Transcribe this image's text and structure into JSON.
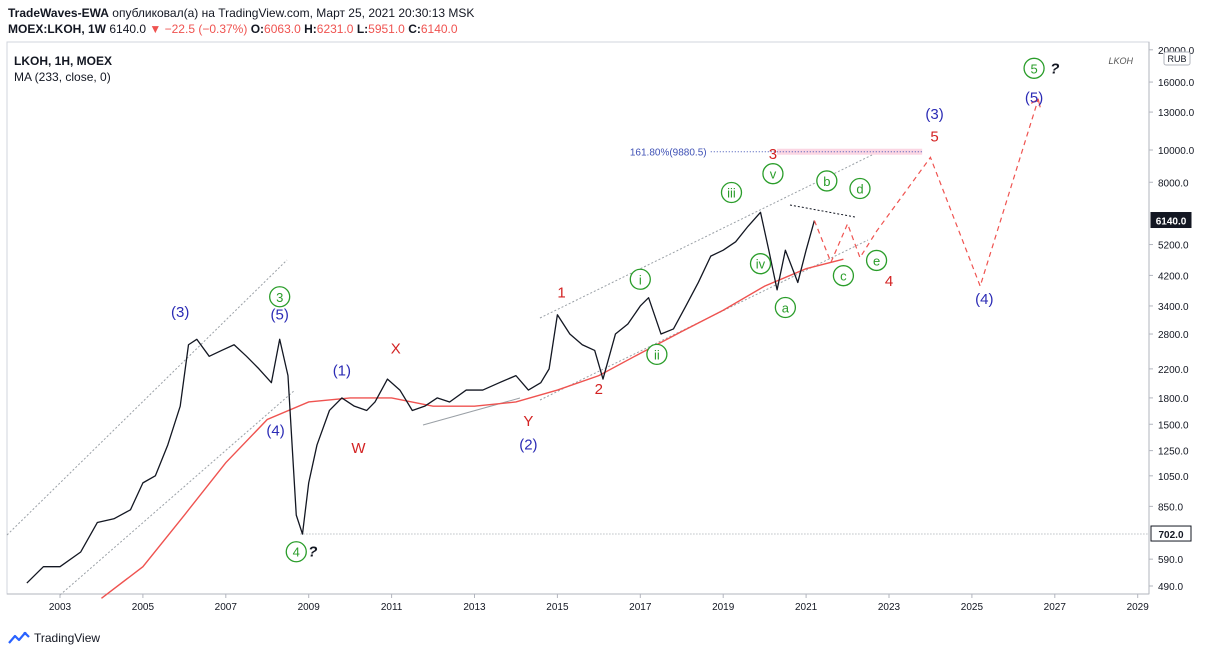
{
  "header": {
    "author": "TradeWaves-EWA",
    "published_text": "опубликовал(а) на TradingView.com, Март 25, 2021 20:30:13 MSK",
    "symbol_line": "MOEX:LKOH, 1W",
    "last": "6140.0",
    "change": "−22.5 (−0.37%)",
    "open_label": "O:",
    "open": "6063.0",
    "high_label": "H:",
    "high": "6231.0",
    "low_label": "L:",
    "low": "5951.0",
    "close_label": "C:",
    "close": "6140.0"
  },
  "footer": {
    "brand": "TradingView"
  },
  "colors": {
    "price": "#131722",
    "ma": "#ef5350",
    "blue_label": "#2b2bb5",
    "green_label": "#2a9d2a",
    "red_label": "#d32222",
    "price_tag": "#131722"
  },
  "chart_data": {
    "type": "line",
    "legend": {
      "title": "LKOH, 1H, MOEX",
      "indicator": "MA (233, close, 0)",
      "watermark": "LKOH"
    },
    "yaxis": {
      "scale": "log",
      "currency": "RUB",
      "ticks": [
        490.0,
        590.0,
        702.0,
        850.0,
        1050.0,
        1250.0,
        1500.0,
        1800.0,
        2200.0,
        2800.0,
        3400.0,
        4200.0,
        5200.0,
        6500.0,
        8000.0,
        10000.0,
        13000.0,
        16000.0,
        20000.0
      ],
      "tick_labels": [
        "490.0",
        "590.0",
        "",
        "850.0",
        "1050.0",
        "1250.0",
        "1500.0",
        "1800.0",
        "2200.0",
        "2800.0",
        "3400.0",
        "4200.0",
        "5200.0",
        "",
        "8000.0",
        "10000.0",
        "13000.0",
        "16000.0",
        "20000.0"
      ],
      "last_price_tag": "6140.0",
      "level_tag": "702.0"
    },
    "xaxis": {
      "tick_labels": [
        "2003",
        "2005",
        "2007",
        "2009",
        "2011",
        "2013",
        "2015",
        "2017",
        "2019",
        "2021",
        "2023",
        "2025",
        "2027",
        "2029"
      ],
      "tick_years": [
        2003,
        2005,
        2007,
        2009,
        2011,
        2013,
        2015,
        2017,
        2019,
        2021,
        2023,
        2025,
        2027,
        2029
      ]
    },
    "series": [
      {
        "kind": "price",
        "x": [
          2002.2,
          2002.6,
          2003.0,
          2003.5,
          2003.9,
          2004.3,
          2004.7,
          2005.0,
          2005.3,
          2005.6,
          2005.9,
          2006.1,
          2006.3,
          2006.6,
          2006.9,
          2007.2,
          2007.5,
          2007.8,
          2008.1,
          2008.3,
          2008.5,
          2008.7,
          2008.85,
          2009.0,
          2009.2,
          2009.5,
          2009.8,
          2010.1,
          2010.4,
          2010.6,
          2010.9,
          2011.2,
          2011.5,
          2011.8,
          2012.1,
          2012.4,
          2012.8,
          2013.2,
          2013.6,
          2014.0,
          2014.3,
          2014.6,
          2014.8,
          2015.0,
          2015.3,
          2015.6,
          2015.9,
          2016.1,
          2016.4,
          2016.7,
          2017.0,
          2017.2,
          2017.5,
          2017.8,
          2018.1,
          2018.4,
          2018.7,
          2019.0,
          2019.3,
          2019.6,
          2019.9,
          2020.1,
          2020.3,
          2020.5,
          2020.8,
          2021.0,
          2021.2
        ],
        "y": [
          500,
          560,
          560,
          620,
          760,
          780,
          830,
          1000,
          1050,
          1300,
          1700,
          2600,
          2700,
          2400,
          2500,
          2600,
          2400,
          2200,
          2000,
          2700,
          2100,
          800,
          702,
          1000,
          1300,
          1650,
          1800,
          1700,
          1650,
          1750,
          2050,
          1900,
          1650,
          1700,
          1800,
          1750,
          1900,
          1900,
          2000,
          2100,
          1900,
          2000,
          2200,
          3200,
          2800,
          2600,
          2500,
          2050,
          2800,
          3000,
          3400,
          3600,
          2800,
          2900,
          3400,
          4000,
          4800,
          5000,
          5300,
          5900,
          6500,
          5000,
          3800,
          5000,
          4000,
          5000,
          6140
        ]
      },
      {
        "kind": "ma",
        "name": "MA (233, close, 0)",
        "x": [
          2004.0,
          2005.0,
          2006.0,
          2007.0,
          2008.0,
          2009.0,
          2010.0,
          2011.0,
          2012.0,
          2013.0,
          2014.0,
          2015.0,
          2016.0,
          2017.0,
          2018.0,
          2019.0,
          2020.0,
          2021.0,
          2021.9
        ],
        "y": [
          450,
          560,
          800,
          1150,
          1550,
          1750,
          1800,
          1800,
          1700,
          1700,
          1750,
          1900,
          2100,
          2450,
          2850,
          3300,
          3900,
          4400,
          4700
        ]
      }
    ],
    "levels": [
      {
        "label": "",
        "value": 702,
        "x_from": 2008.8,
        "x_to": 2030.0
      },
      {
        "label": "161.80%(9880.5)",
        "value": 9880.5,
        "x_from": 2020.3,
        "x_to": 2023.8
      }
    ],
    "wave_labels": [
      {
        "text": "(3)",
        "x": 2005.9,
        "y": 3150,
        "color": "blue"
      },
      {
        "text": "(5)",
        "x": 2008.3,
        "y": 3100,
        "color": "blue"
      },
      {
        "text": "3",
        "x": 2008.3,
        "y": 3500,
        "color": "green",
        "circled": true
      },
      {
        "text": "(4)",
        "x": 2008.2,
        "y": 1390,
        "color": "blue"
      },
      {
        "text": "4",
        "x": 2008.7,
        "y": 600,
        "color": "green",
        "circled": true
      },
      {
        "text": "?",
        "x": 2009.1,
        "y": 600,
        "color": "black"
      },
      {
        "text": "(1)",
        "x": 2009.8,
        "y": 2100,
        "color": "blue"
      },
      {
        "text": "W",
        "x": 2010.2,
        "y": 1230,
        "color": "red"
      },
      {
        "text": "X",
        "x": 2011.1,
        "y": 2450,
        "color": "red"
      },
      {
        "text": "Y",
        "x": 2014.3,
        "y": 1480,
        "color": "red"
      },
      {
        "text": "(2)",
        "x": 2014.3,
        "y": 1260,
        "color": "blue"
      },
      {
        "text": "1",
        "x": 2015.1,
        "y": 3600,
        "color": "red"
      },
      {
        "text": "2",
        "x": 2016.0,
        "y": 1850,
        "color": "red"
      },
      {
        "text": "i",
        "x": 2017.0,
        "y": 3950,
        "color": "green",
        "circled": true
      },
      {
        "text": "ii",
        "x": 2017.4,
        "y": 2350,
        "color": "green",
        "circled": true
      },
      {
        "text": "iii",
        "x": 2019.2,
        "y": 7200,
        "color": "green",
        "circled": true
      },
      {
        "text": "iv",
        "x": 2019.9,
        "y": 4400,
        "color": "green",
        "circled": true
      },
      {
        "text": "v",
        "x": 2020.2,
        "y": 8200,
        "color": "green",
        "circled": true
      },
      {
        "text": "3",
        "x": 2020.2,
        "y": 9400,
        "color": "red"
      },
      {
        "text": "a",
        "x": 2020.5,
        "y": 3250,
        "color": "green",
        "circled": true
      },
      {
        "text": "b",
        "x": 2021.5,
        "y": 7800,
        "color": "green",
        "circled": true
      },
      {
        "text": "c",
        "x": 2021.9,
        "y": 4050,
        "color": "green",
        "circled": true
      },
      {
        "text": "d",
        "x": 2022.3,
        "y": 7400,
        "color": "green",
        "circled": true
      },
      {
        "text": "e",
        "x": 2022.7,
        "y": 4500,
        "color": "green",
        "circled": true
      },
      {
        "text": "4",
        "x": 2023.0,
        "y": 3900,
        "color": "red"
      },
      {
        "text": "(3)",
        "x": 2024.1,
        "y": 12400,
        "color": "blue"
      },
      {
        "text": "5",
        "x": 2024.1,
        "y": 10600,
        "color": "red"
      },
      {
        "text": "(4)",
        "x": 2025.3,
        "y": 3450,
        "color": "blue"
      },
      {
        "text": "5",
        "x": 2026.5,
        "y": 17000,
        "color": "green",
        "circled": true
      },
      {
        "text": "?",
        "x": 2027.0,
        "y": 17000,
        "color": "black"
      },
      {
        "text": "(5)",
        "x": 2026.5,
        "y": 13900,
        "color": "blue"
      }
    ],
    "projection": {
      "x": [
        2021.2,
        2021.6,
        2022.0,
        2022.3,
        2022.7,
        2024.0,
        2025.2,
        2026.6
      ],
      "y": [
        6140,
        4600,
        6000,
        4750,
        5700,
        9500,
        3900,
        14200
      ]
    }
  }
}
